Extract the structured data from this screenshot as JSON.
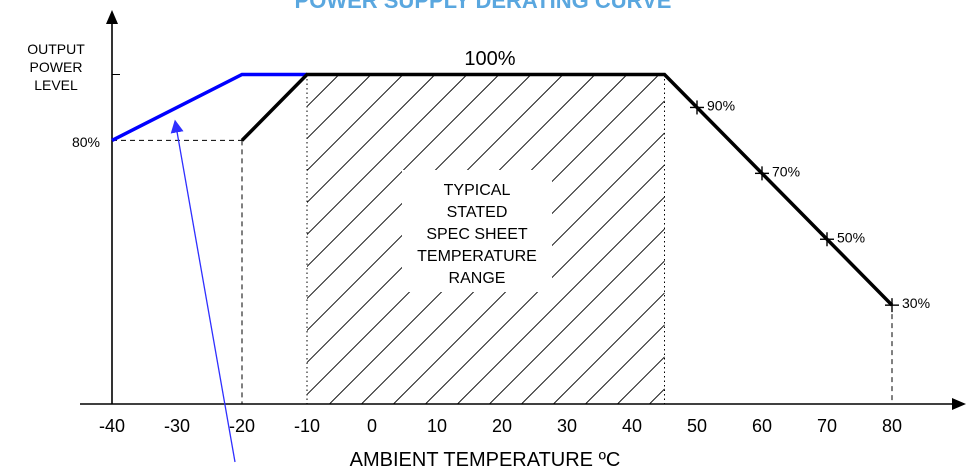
{
  "chart_data": {
    "type": "line",
    "title": "POWER SUPPLY DERATING CURVE",
    "xlabel": "AMBIENT TEMPERATURE ºC",
    "ylabel_lines": [
      "OUTPUT",
      "POWER",
      "LEVEL"
    ],
    "x_ticks": [
      -40,
      -30,
      -20,
      -10,
      0,
      10,
      20,
      30,
      40,
      50,
      60,
      70,
      80
    ],
    "xlim": [
      -40,
      80
    ],
    "ylim": [
      0,
      100
    ],
    "y_marker_label": "80%",
    "top_label": "100%",
    "series": [
      {
        "color": "#0000ff",
        "points": [
          [
            -40,
            80
          ],
          [
            -20,
            100
          ],
          [
            -10,
            100
          ]
        ]
      },
      {
        "color": "#000000",
        "points": [
          [
            -20,
            80
          ],
          [
            -10,
            100
          ],
          [
            45,
            100
          ],
          [
            80,
            30
          ]
        ]
      }
    ],
    "derating_points": [
      {
        "x": 50,
        "y": 90,
        "label": "90%"
      },
      {
        "x": 60,
        "y": 70,
        "label": "70%"
      },
      {
        "x": 70,
        "y": 50,
        "label": "50%"
      },
      {
        "x": 80,
        "y": 30,
        "label": "30%"
      }
    ],
    "hatched_region": {
      "x_range": [
        -10,
        45
      ],
      "label_lines": [
        "TYPICAL",
        "STATED",
        "SPEC SHEET",
        "TEMPERATURE",
        "RANGE"
      ]
    },
    "guides": {
      "dashed_h_y": 80,
      "dashed_v_x": [
        -20,
        80
      ],
      "dotted_v_x": [
        -10,
        45
      ]
    },
    "colors": {
      "blue_curve": "#0000ff",
      "black_curve": "#000000",
      "title": "#5aa7df",
      "arrow": "#2f2fff"
    }
  }
}
